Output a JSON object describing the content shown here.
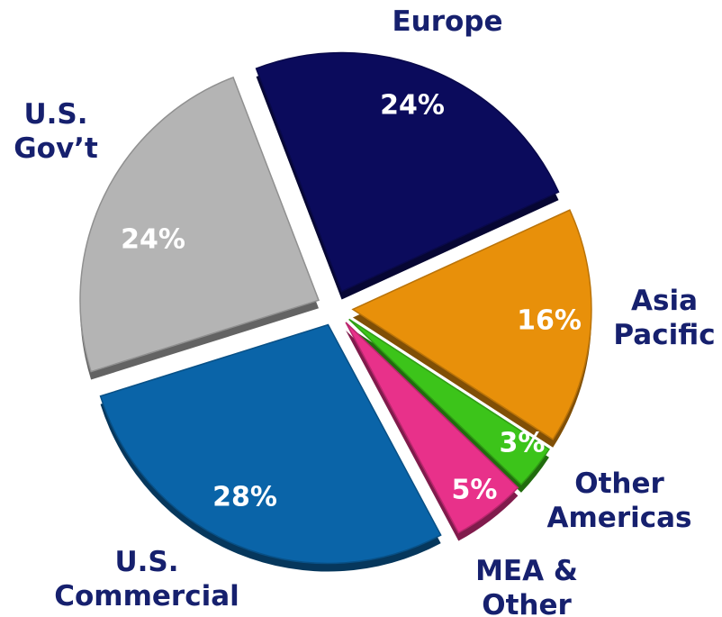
{
  "chart_data": {
    "type": "pie",
    "categories": [
      "Europe",
      "Asia\nPacific",
      "Other\nAmericas",
      "MEA &\nOther",
      "U.S.\nCommercial",
      "U.S.\nGov’t"
    ],
    "values": [
      24,
      16,
      3,
      5,
      28,
      24
    ],
    "value_labels": [
      "24%",
      "16%",
      "3%",
      "5%",
      "28%",
      "24%"
    ],
    "colors": [
      "#0b0b5c",
      "#e8900a",
      "#3cc41a",
      "#e8318a",
      "#0a64a8",
      "#b4b4b4"
    ]
  }
}
